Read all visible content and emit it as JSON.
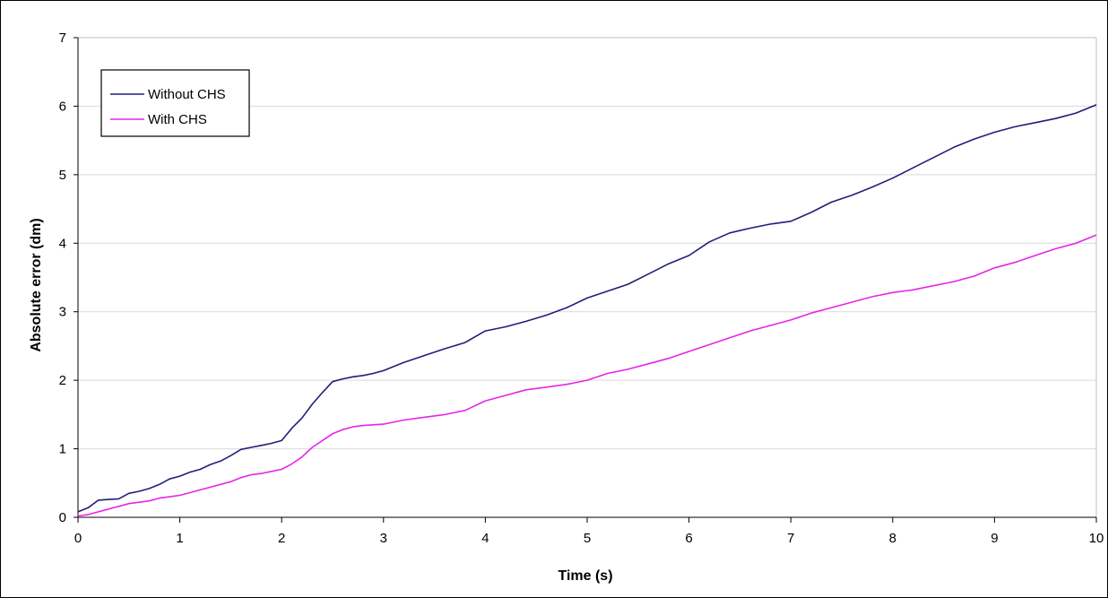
{
  "chart_data": {
    "type": "line",
    "title": "",
    "xlabel": "Time (s)",
    "ylabel": "Absolute error (dm)",
    "xlim": [
      0,
      10
    ],
    "ylim": [
      0,
      7
    ],
    "xticks": [
      "0",
      "1",
      "2",
      "3",
      "4",
      "5",
      "6",
      "7",
      "8",
      "9",
      "10"
    ],
    "yticks": [
      "0",
      "1",
      "2",
      "3",
      "4",
      "5",
      "6",
      "7"
    ],
    "grid": "horizontal",
    "legend_position": "top-left",
    "series": [
      {
        "name": "Without CHS",
        "color": "#1f1f7a",
        "x": [
          0,
          0.1,
          0.2,
          0.3,
          0.4,
          0.5,
          0.6,
          0.7,
          0.8,
          0.9,
          1.0,
          1.1,
          1.2,
          1.3,
          1.4,
          1.5,
          1.6,
          1.7,
          1.8,
          1.9,
          2.0,
          2.1,
          2.2,
          2.3,
          2.4,
          2.5,
          2.6,
          2.7,
          2.8,
          2.9,
          3.0,
          3.2,
          3.4,
          3.6,
          3.8,
          4.0,
          4.2,
          4.4,
          4.6,
          4.8,
          5.0,
          5.2,
          5.4,
          5.6,
          5.8,
          6.0,
          6.2,
          6.4,
          6.6,
          6.8,
          7.0,
          7.2,
          7.4,
          7.6,
          7.8,
          8.0,
          8.2,
          8.4,
          8.6,
          8.8,
          9.0,
          9.2,
          9.4,
          9.6,
          9.8,
          10.0
        ],
        "values": [
          0.08,
          0.14,
          0.25,
          0.26,
          0.27,
          0.35,
          0.38,
          0.42,
          0.48,
          0.56,
          0.6,
          0.66,
          0.7,
          0.77,
          0.82,
          0.9,
          0.99,
          1.02,
          1.05,
          1.08,
          1.12,
          1.3,
          1.45,
          1.65,
          1.82,
          1.98,
          2.02,
          2.05,
          2.07,
          2.1,
          2.14,
          2.26,
          2.36,
          2.46,
          2.55,
          2.72,
          2.78,
          2.86,
          2.95,
          3.06,
          3.2,
          3.3,
          3.4,
          3.55,
          3.7,
          3.82,
          4.02,
          4.15,
          4.22,
          4.28,
          4.32,
          4.45,
          4.6,
          4.7,
          4.82,
          4.95,
          5.1,
          5.25,
          5.4,
          5.52,
          5.62,
          5.7,
          5.76,
          5.82,
          5.9,
          6.02
        ]
      },
      {
        "name": "With CHS",
        "color": "#e626e6",
        "x": [
          0,
          0.1,
          0.2,
          0.3,
          0.4,
          0.5,
          0.6,
          0.7,
          0.8,
          0.9,
          1.0,
          1.1,
          1.2,
          1.3,
          1.4,
          1.5,
          1.6,
          1.7,
          1.8,
          1.9,
          2.0,
          2.1,
          2.2,
          2.3,
          2.4,
          2.5,
          2.6,
          2.7,
          2.8,
          2.9,
          3.0,
          3.2,
          3.4,
          3.6,
          3.8,
          4.0,
          4.2,
          4.4,
          4.6,
          4.8,
          5.0,
          5.2,
          5.4,
          5.6,
          5.8,
          6.0,
          6.2,
          6.4,
          6.6,
          6.8,
          7.0,
          7.2,
          7.4,
          7.6,
          7.8,
          8.0,
          8.2,
          8.4,
          8.6,
          8.8,
          9.0,
          9.2,
          9.4,
          9.6,
          9.8,
          10.0
        ],
        "values": [
          0.02,
          0.04,
          0.08,
          0.12,
          0.16,
          0.2,
          0.22,
          0.24,
          0.28,
          0.3,
          0.32,
          0.36,
          0.4,
          0.44,
          0.48,
          0.52,
          0.58,
          0.62,
          0.64,
          0.67,
          0.7,
          0.78,
          0.88,
          1.02,
          1.12,
          1.22,
          1.28,
          1.32,
          1.34,
          1.35,
          1.36,
          1.42,
          1.46,
          1.5,
          1.56,
          1.7,
          1.78,
          1.86,
          1.9,
          1.94,
          2.0,
          2.1,
          2.16,
          2.24,
          2.32,
          2.42,
          2.52,
          2.62,
          2.72,
          2.8,
          2.88,
          2.98,
          3.06,
          3.14,
          3.22,
          3.28,
          3.32,
          3.38,
          3.44,
          3.52,
          3.64,
          3.72,
          3.82,
          3.92,
          4.0,
          4.12
        ]
      }
    ]
  }
}
